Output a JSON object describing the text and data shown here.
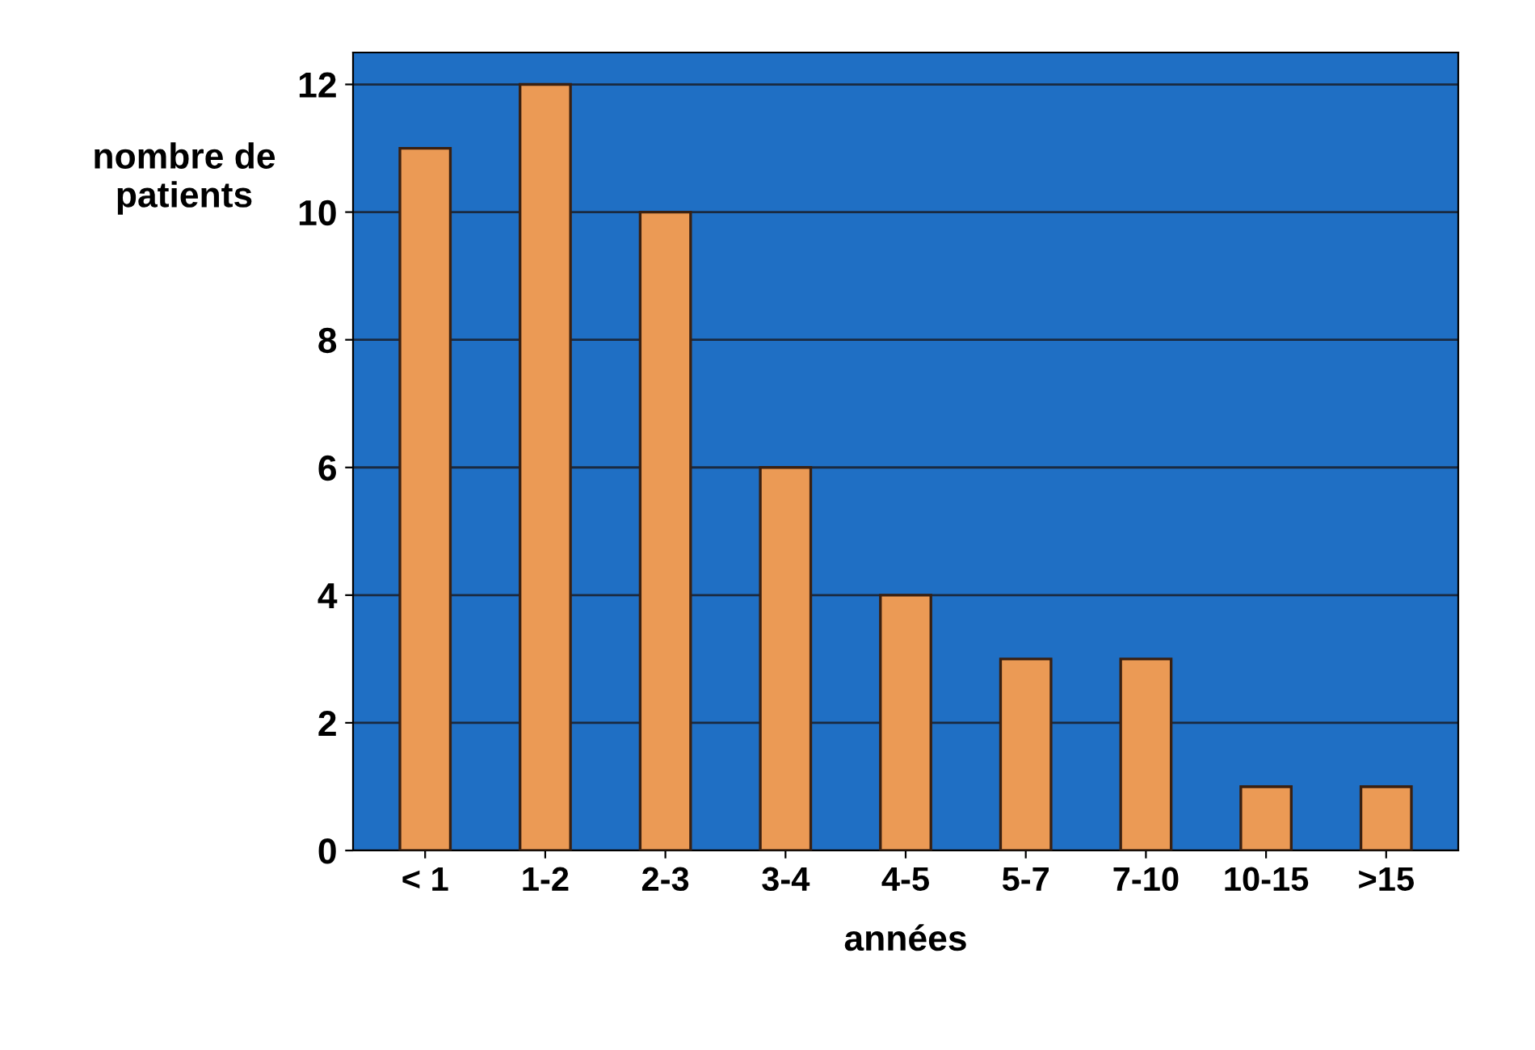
{
  "chart_data": {
    "type": "bar",
    "xlabel": "années",
    "ylabel": "nombre de\npatients",
    "categories": [
      "< 1",
      "1-2",
      "2-3",
      "3-4",
      "4-5",
      "5-7",
      "7-10",
      "10-15",
      ">15"
    ],
    "values": [
      11,
      12,
      10,
      6,
      4,
      3,
      3,
      1,
      1
    ],
    "color": "#eb9a55",
    "ylim": [
      0,
      12.5
    ],
    "yticks": [
      0,
      2,
      4,
      6,
      8,
      10,
      12
    ],
    "grid": "y",
    "legend": false
  }
}
